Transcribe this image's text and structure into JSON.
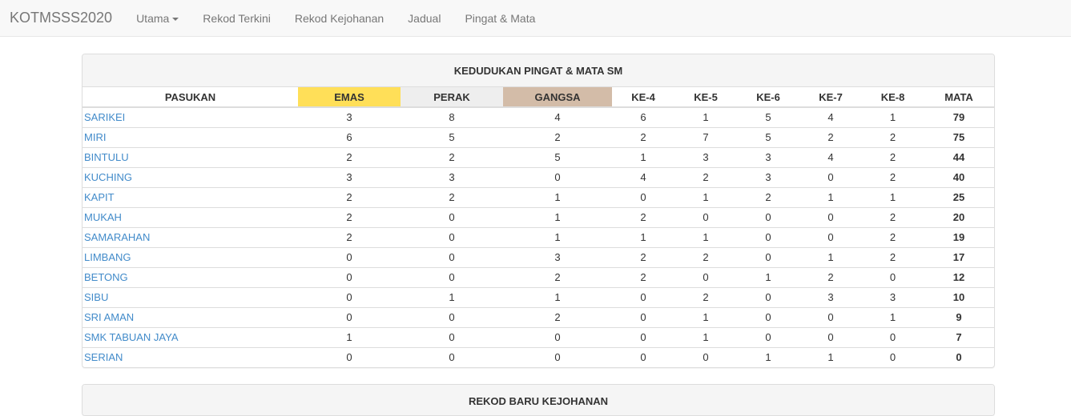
{
  "nav": {
    "brand": "KOTMSSS2020",
    "items": [
      "Utama",
      "Rekod Terkini",
      "Rekod Kejohanan",
      "Jadual",
      "Pingat & Mata"
    ]
  },
  "colors": {
    "emas": "#ffdf58",
    "perak": "#eeeeee",
    "gangsa": "#d3bca8",
    "link": "#428bca"
  },
  "panel": {
    "title": "KEDUDUKAN PINGAT & MATA SM",
    "columns": [
      "PASUKAN",
      "EMAS",
      "PERAK",
      "GANGSA",
      "KE-4",
      "KE-5",
      "KE-6",
      "KE-7",
      "KE-8",
      "MATA"
    ],
    "rows": [
      [
        "SARIKEI",
        "3",
        "8",
        "4",
        "6",
        "1",
        "5",
        "4",
        "1",
        "79"
      ],
      [
        "MIRI",
        "6",
        "5",
        "2",
        "2",
        "7",
        "5",
        "2",
        "2",
        "75"
      ],
      [
        "BINTULU",
        "2",
        "2",
        "5",
        "1",
        "3",
        "3",
        "4",
        "2",
        "44"
      ],
      [
        "KUCHING",
        "3",
        "3",
        "0",
        "4",
        "2",
        "3",
        "0",
        "2",
        "40"
      ],
      [
        "KAPIT",
        "2",
        "2",
        "1",
        "0",
        "1",
        "2",
        "1",
        "1",
        "25"
      ],
      [
        "MUKAH",
        "2",
        "0",
        "1",
        "2",
        "0",
        "0",
        "0",
        "2",
        "20"
      ],
      [
        "SAMARAHAN",
        "2",
        "0",
        "1",
        "1",
        "1",
        "0",
        "0",
        "2",
        "19"
      ],
      [
        "LIMBANG",
        "0",
        "0",
        "3",
        "2",
        "2",
        "0",
        "1",
        "2",
        "17"
      ],
      [
        "BETONG",
        "0",
        "0",
        "2",
        "2",
        "0",
        "1",
        "2",
        "0",
        "12"
      ],
      [
        "SIBU",
        "0",
        "1",
        "1",
        "0",
        "2",
        "0",
        "3",
        "3",
        "10"
      ],
      [
        "SRI AMAN",
        "0",
        "0",
        "2",
        "0",
        "1",
        "0",
        "0",
        "1",
        "9"
      ],
      [
        "SMK TABUAN JAYA",
        "1",
        "0",
        "0",
        "0",
        "1",
        "0",
        "0",
        "0",
        "7"
      ],
      [
        "SERIAN",
        "0",
        "0",
        "0",
        "0",
        "0",
        "1",
        "1",
        "0",
        "0"
      ]
    ]
  },
  "panel2": {
    "title": "REKOD BARU KEJOHANAN"
  }
}
